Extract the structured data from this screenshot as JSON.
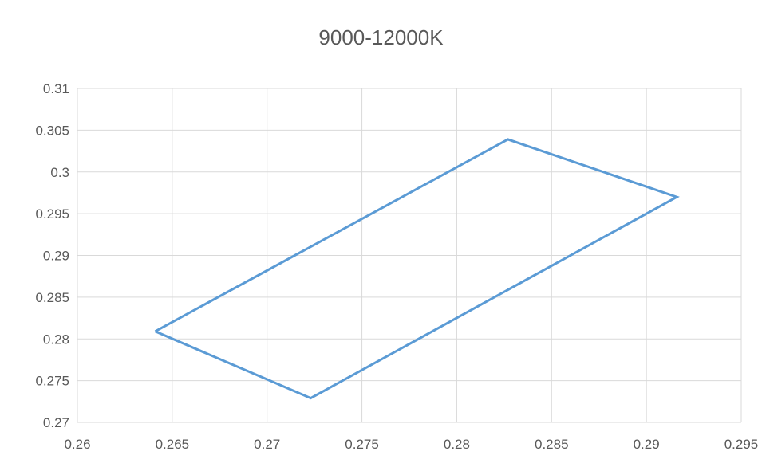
{
  "chart_data": {
    "type": "scatter",
    "title": "9000-12000K",
    "xlabel": "",
    "ylabel": "",
    "xlim": [
      0.26,
      0.295
    ],
    "ylim": [
      0.27,
      0.31
    ],
    "x_ticks": [
      "0.26",
      "0.265",
      "0.27",
      "0.275",
      "0.28",
      "0.285",
      "0.29",
      "0.295"
    ],
    "y_ticks": [
      "0.27",
      "0.275",
      "0.28",
      "0.285",
      "0.29",
      "0.295",
      "0.3",
      "0.305",
      "0.31"
    ],
    "grid": true,
    "legend": "none",
    "series": [
      {
        "style": "lines-only",
        "color": "#5b9bd5",
        "x": [
          0.2641,
          0.2723,
          0.2916,
          0.2827,
          0.2641
        ],
        "y": [
          0.2809,
          0.2729,
          0.297,
          0.3039,
          0.2809
        ]
      }
    ]
  },
  "colors": {
    "grid": "#d9d9d9",
    "text": "#595959",
    "series": "#5b9bd5"
  }
}
